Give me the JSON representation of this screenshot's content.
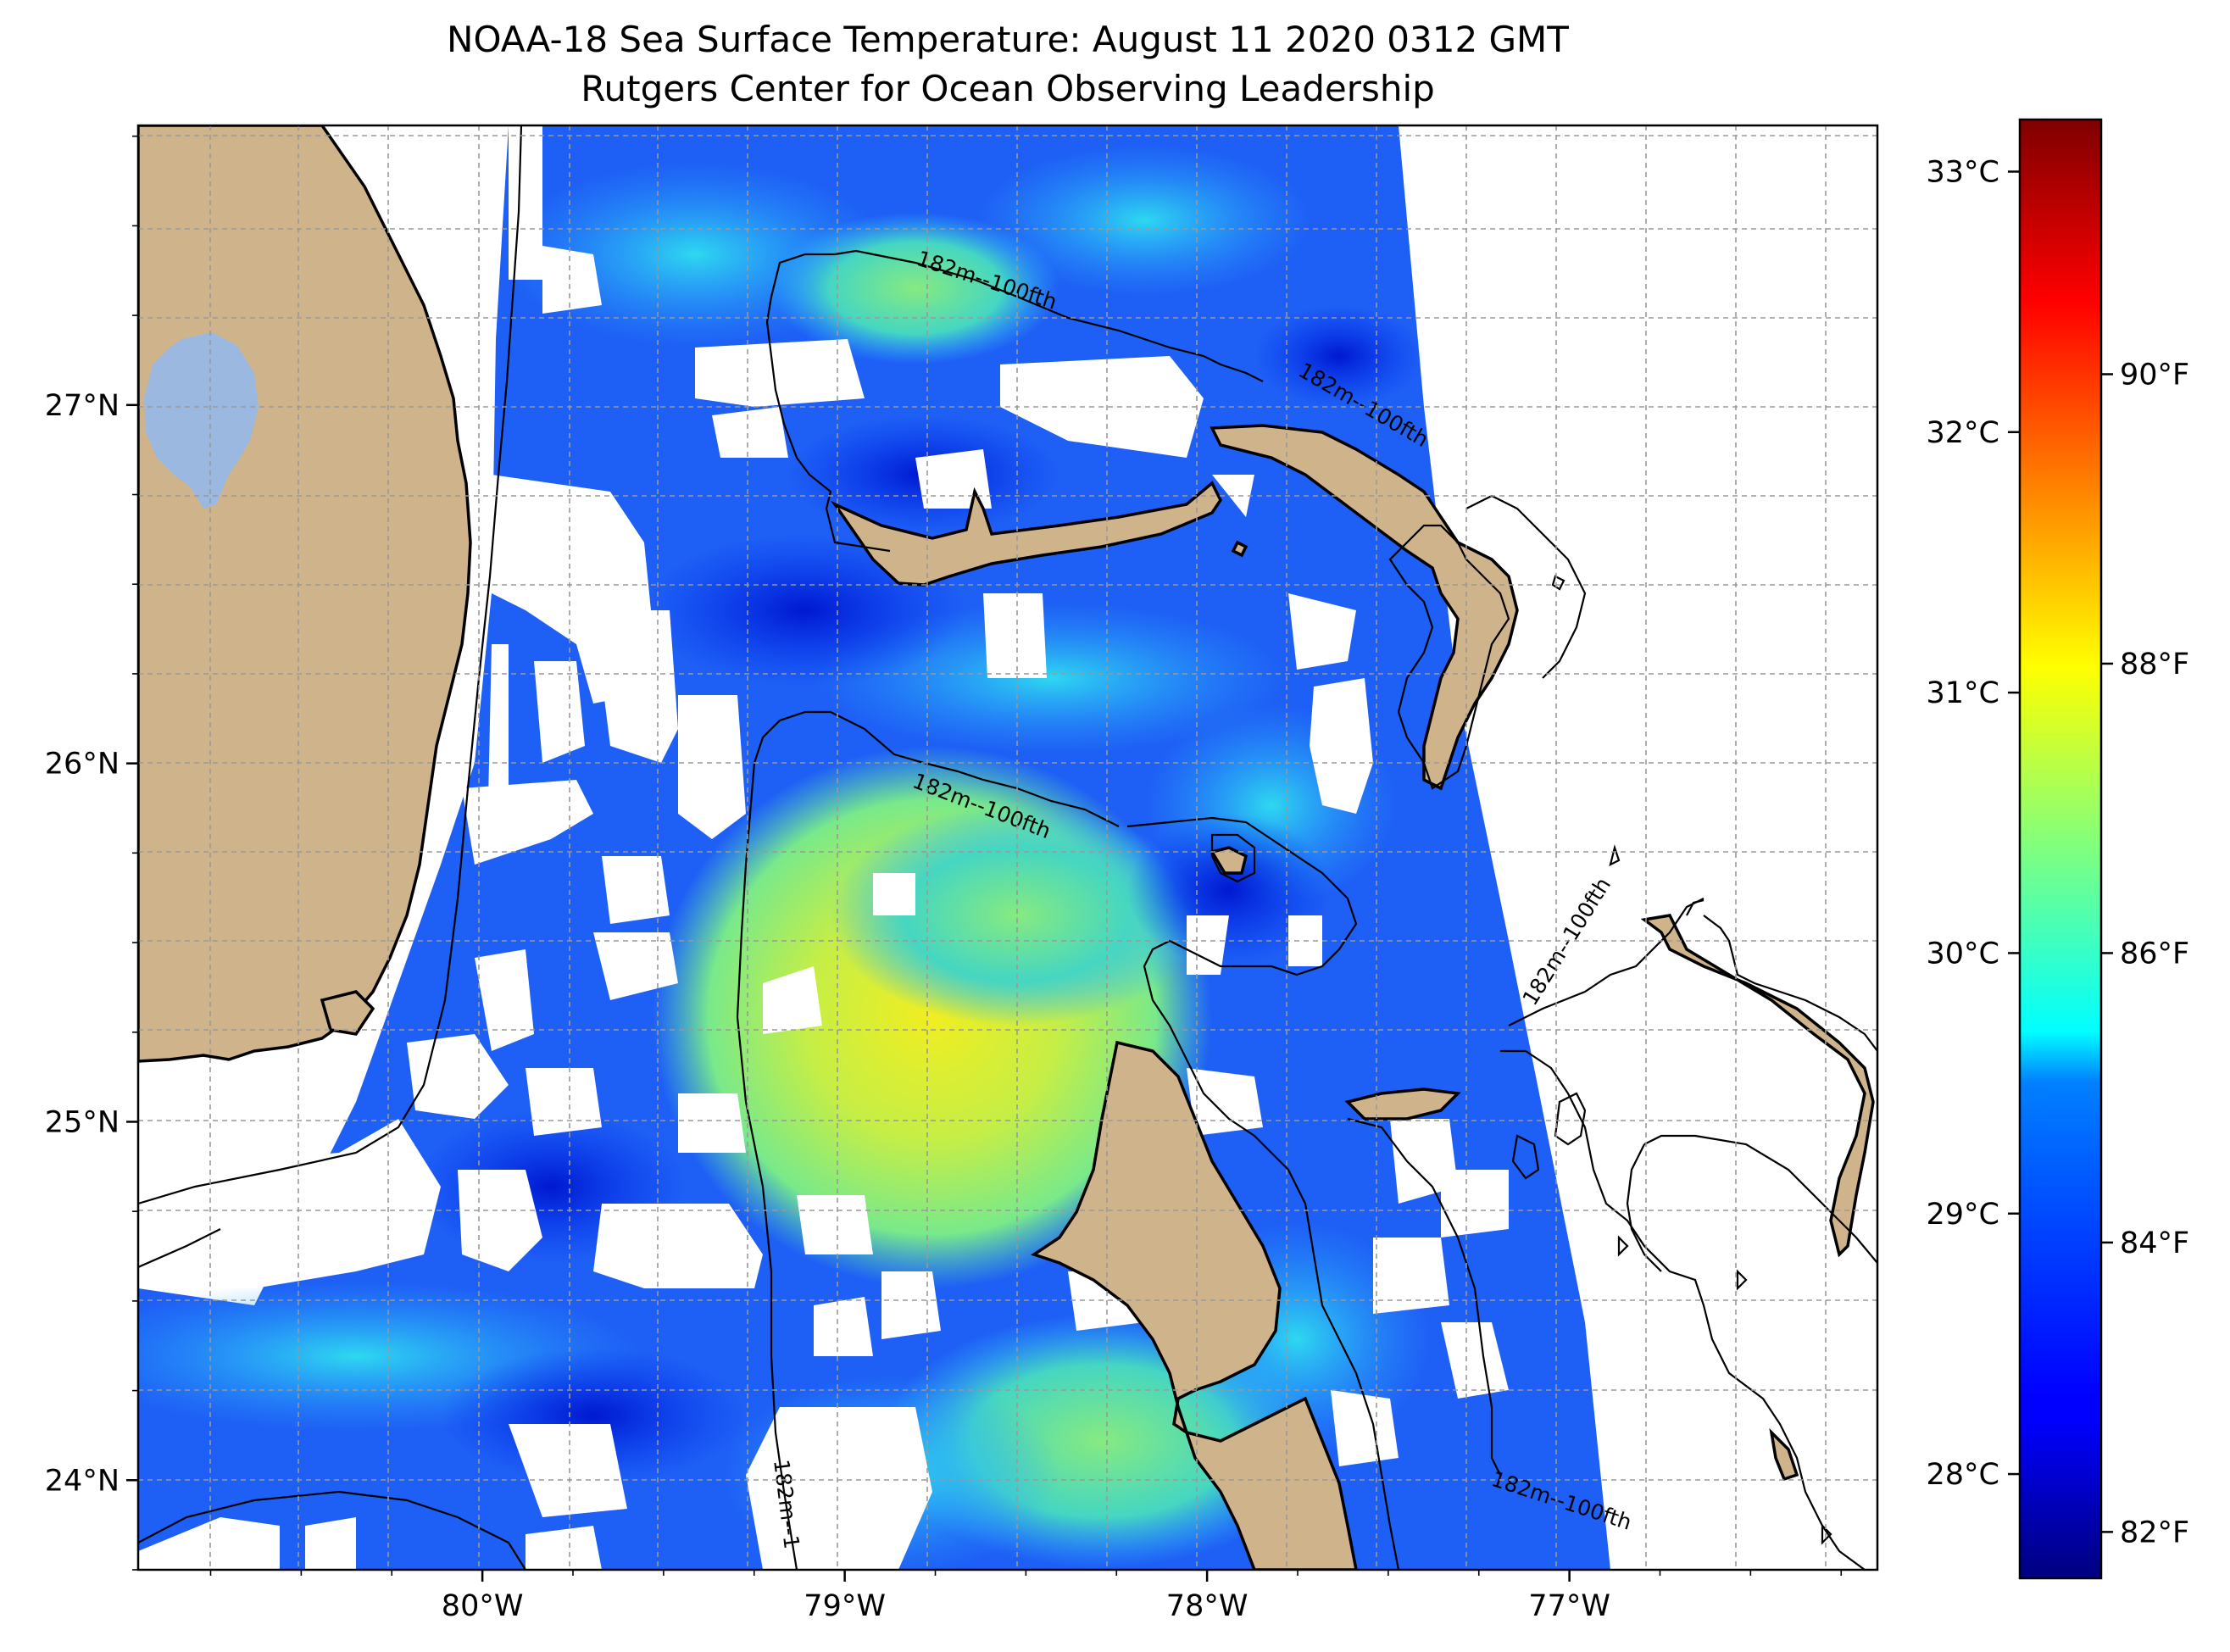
{
  "title": {
    "line1": "NOAA-18 Sea Surface Temperature: August 11 2020 0312 GMT",
    "line2": "Rutgers Center for Ocean Observing Leadership"
  },
  "map": {
    "lon_range": [
      -80.95,
      -76.15
    ],
    "lat_range": [
      23.75,
      27.78
    ],
    "lon_ticks": [
      {
        "value": -80,
        "label": "80°W"
      },
      {
        "value": -79,
        "label": "79°W"
      },
      {
        "value": -78,
        "label": "78°W"
      },
      {
        "value": -77,
        "label": "77°W"
      }
    ],
    "lat_ticks": [
      {
        "value": 27,
        "label": "27°N"
      },
      {
        "value": 26,
        "label": "26°N"
      },
      {
        "value": 25,
        "label": "25°N"
      },
      {
        "value": 24,
        "label": "24°N"
      }
    ],
    "gridlines": "dashed gray",
    "land_color": "#cfb48b",
    "lake_color": "#9bb8e0",
    "contour_label": "182m--100fth",
    "contour_label_truncated": "182m--1"
  },
  "colorbar": {
    "colormap": "jet",
    "celsius_range": [
      27.6,
      33.2
    ],
    "celsius_ticks": [
      {
        "value": 28,
        "label": "28°C"
      },
      {
        "value": 29,
        "label": "29°C"
      },
      {
        "value": 30,
        "label": "30°C"
      },
      {
        "value": 31,
        "label": "31°C"
      },
      {
        "value": 32,
        "label": "32°C"
      },
      {
        "value": 33,
        "label": "33°C"
      }
    ],
    "fahrenheit_ticks": [
      {
        "value": 82,
        "label": "82°F"
      },
      {
        "value": 84,
        "label": "84°F"
      },
      {
        "value": 86,
        "label": "86°F"
      },
      {
        "value": 88,
        "label": "88°F"
      },
      {
        "value": 90,
        "label": "90°F"
      }
    ]
  }
}
